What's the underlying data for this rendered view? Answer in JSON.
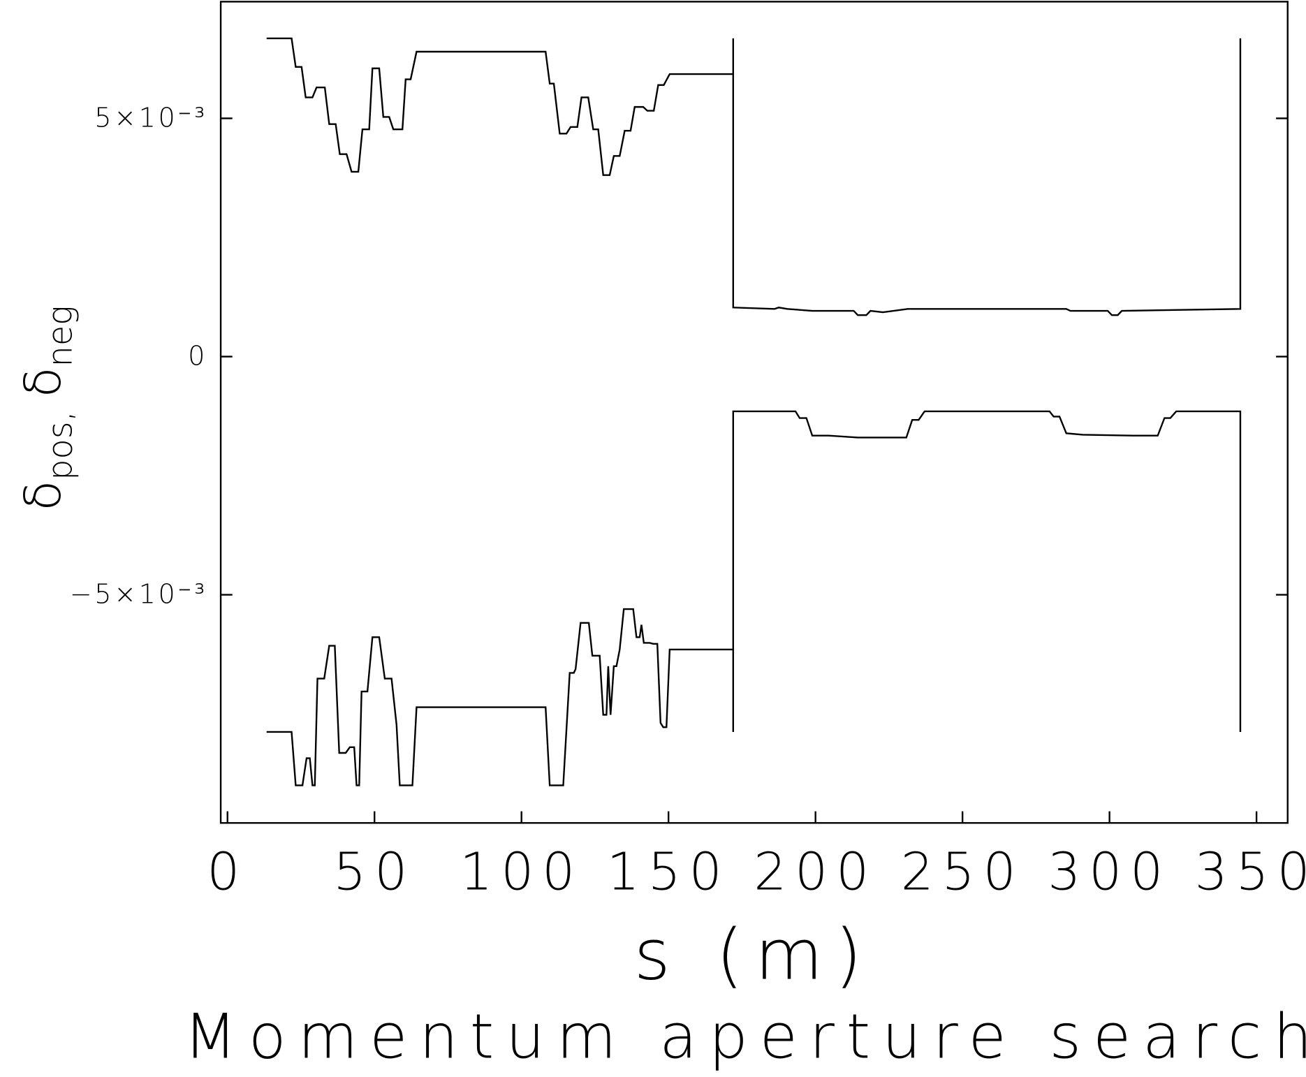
{
  "chart_data": {
    "type": "line",
    "title": "Momentum aperture search",
    "xlabel": "s (m)",
    "ylabel": [
      "δ",
      "pos,",
      "δ",
      "neg"
    ],
    "xlim": [
      -2.3,
      360.6
    ],
    "ylim": [
      -0.00979,
      0.00745
    ],
    "xticks": [
      0,
      50,
      100,
      150,
      200,
      250,
      300,
      350
    ],
    "yticks": [
      {
        "value": -0.005,
        "label": "−5×10⁻³"
      },
      0,
      {
        "value": 0.005,
        "label": "5×10⁻³"
      }
    ],
    "grid": false,
    "series": [
      {
        "color": "#000000",
        "x": [
          13.3,
          21.8,
          23.2,
          25.2,
          26.6,
          28.9,
          30.3,
          33.1,
          34.6,
          36.8,
          38.2,
          40.5,
          42.2,
          44.5,
          45.9,
          48.2,
          49.3,
          51.6,
          53.0,
          55.0,
          56.4,
          59.5,
          60.6,
          62.3,
          64.3,
          108.2,
          109.6,
          111.0,
          113.0,
          115.3,
          116.7,
          119.0,
          120.4,
          122.7,
          124.4,
          126.1,
          127.8,
          130.0,
          131.4,
          133.4,
          135.1,
          137.1,
          138.5,
          141.4,
          142.8,
          145.0,
          146.5,
          148.4,
          150.4,
          172.0,
          172.0,
          172.0,
          186.1,
          187.5,
          190.4,
          198.9,
          213.0,
          214.4,
          217.3,
          218.7,
          222.9,
          231.4,
          285.3,
          286.7,
          299.4,
          300.8,
          302.8,
          304.2,
          344.5,
          344.5
        ],
        "values": [
          0.00668,
          0.00668,
          0.00608,
          0.00608,
          0.00544,
          0.00544,
          0.00565,
          0.00565,
          0.00488,
          0.00488,
          0.00425,
          0.00425,
          0.00388,
          0.00388,
          0.00477,
          0.00477,
          0.00605,
          0.00605,
          0.00503,
          0.00503,
          0.00477,
          0.00477,
          0.00582,
          0.00582,
          0.0064,
          0.0064,
          0.00573,
          0.00573,
          0.00468,
          0.00468,
          0.00482,
          0.00482,
          0.00544,
          0.00544,
          0.00477,
          0.00477,
          0.00381,
          0.00381,
          0.00421,
          0.00421,
          0.00474,
          0.00474,
          0.00524,
          0.00524,
          0.00516,
          0.00516,
          0.0057,
          0.0057,
          0.00593,
          0.00593,
          0.00668,
          0.00103,
          0.001,
          0.00103,
          0.001,
          0.00096,
          0.00096,
          0.00087,
          0.00087,
          0.00096,
          0.00093,
          0.001,
          0.001,
          0.00096,
          0.00096,
          0.00087,
          0.00087,
          0.00096,
          0.001,
          0.00668
        ]
      },
      {
        "color": "#000000",
        "x": [
          13.3,
          21.8,
          23.2,
          25.5,
          26.9,
          28.0,
          28.9,
          29.7,
          30.6,
          32.9,
          34.6,
          36.5,
          38.0,
          40.2,
          41.6,
          43.1,
          43.9,
          44.8,
          45.6,
          47.6,
          49.3,
          51.6,
          53.5,
          55.8,
          57.5,
          58.6,
          62.9,
          64.3,
          108.2,
          109.6,
          114.2,
          116.4,
          117.8,
          118.4,
          120.1,
          122.9,
          124.1,
          126.6,
          127.8,
          128.9,
          129.5,
          130.3,
          131.4,
          132.3,
          133.4,
          134.8,
          138.0,
          139.1,
          140.2,
          140.8,
          141.6,
          143.6,
          144.8,
          146.2,
          147.3,
          148.2,
          149.3,
          150.4,
          172.0,
          172.0,
          172.0,
          193.2,
          194.6,
          196.9,
          198.9,
          204.5,
          214.4,
          230.9,
          232.9,
          235.1,
          237.1,
          279.6,
          281.0,
          283.0,
          285.3,
          290.9,
          307.9,
          316.4,
          318.7,
          320.7,
          322.7,
          344.5,
          344.5
        ],
        "values": [
          -0.00788,
          -0.00788,
          -0.009,
          -0.009,
          -0.00843,
          -0.00843,
          -0.009,
          -0.009,
          -0.00676,
          -0.00676,
          -0.00607,
          -0.00607,
          -0.00832,
          -0.00832,
          -0.0082,
          -0.0082,
          -0.009,
          -0.009,
          -0.00703,
          -0.00703,
          -0.00589,
          -0.00589,
          -0.00676,
          -0.00676,
          -0.00773,
          -0.009,
          -0.009,
          -0.00736,
          -0.00736,
          -0.009,
          -0.009,
          -0.00664,
          -0.00664,
          -0.00656,
          -0.00559,
          -0.00559,
          -0.00628,
          -0.00628,
          -0.00752,
          -0.00752,
          -0.0065,
          -0.00752,
          -0.0065,
          -0.0065,
          -0.00615,
          -0.0053,
          -0.0053,
          -0.00589,
          -0.00589,
          -0.00563,
          -0.00601,
          -0.00601,
          -0.00603,
          -0.00603,
          -0.00769,
          -0.00778,
          -0.00778,
          -0.00615,
          -0.00615,
          -0.00788,
          -0.00115,
          -0.00115,
          -0.00129,
          -0.00129,
          -0.00166,
          -0.00166,
          -0.0017,
          -0.0017,
          -0.00133,
          -0.00133,
          -0.00115,
          -0.00115,
          -0.00126,
          -0.00126,
          -0.00161,
          -0.00164,
          -0.00166,
          -0.00166,
          -0.00129,
          -0.00129,
          -0.00115,
          -0.00115,
          -0.00788
        ]
      }
    ]
  }
}
